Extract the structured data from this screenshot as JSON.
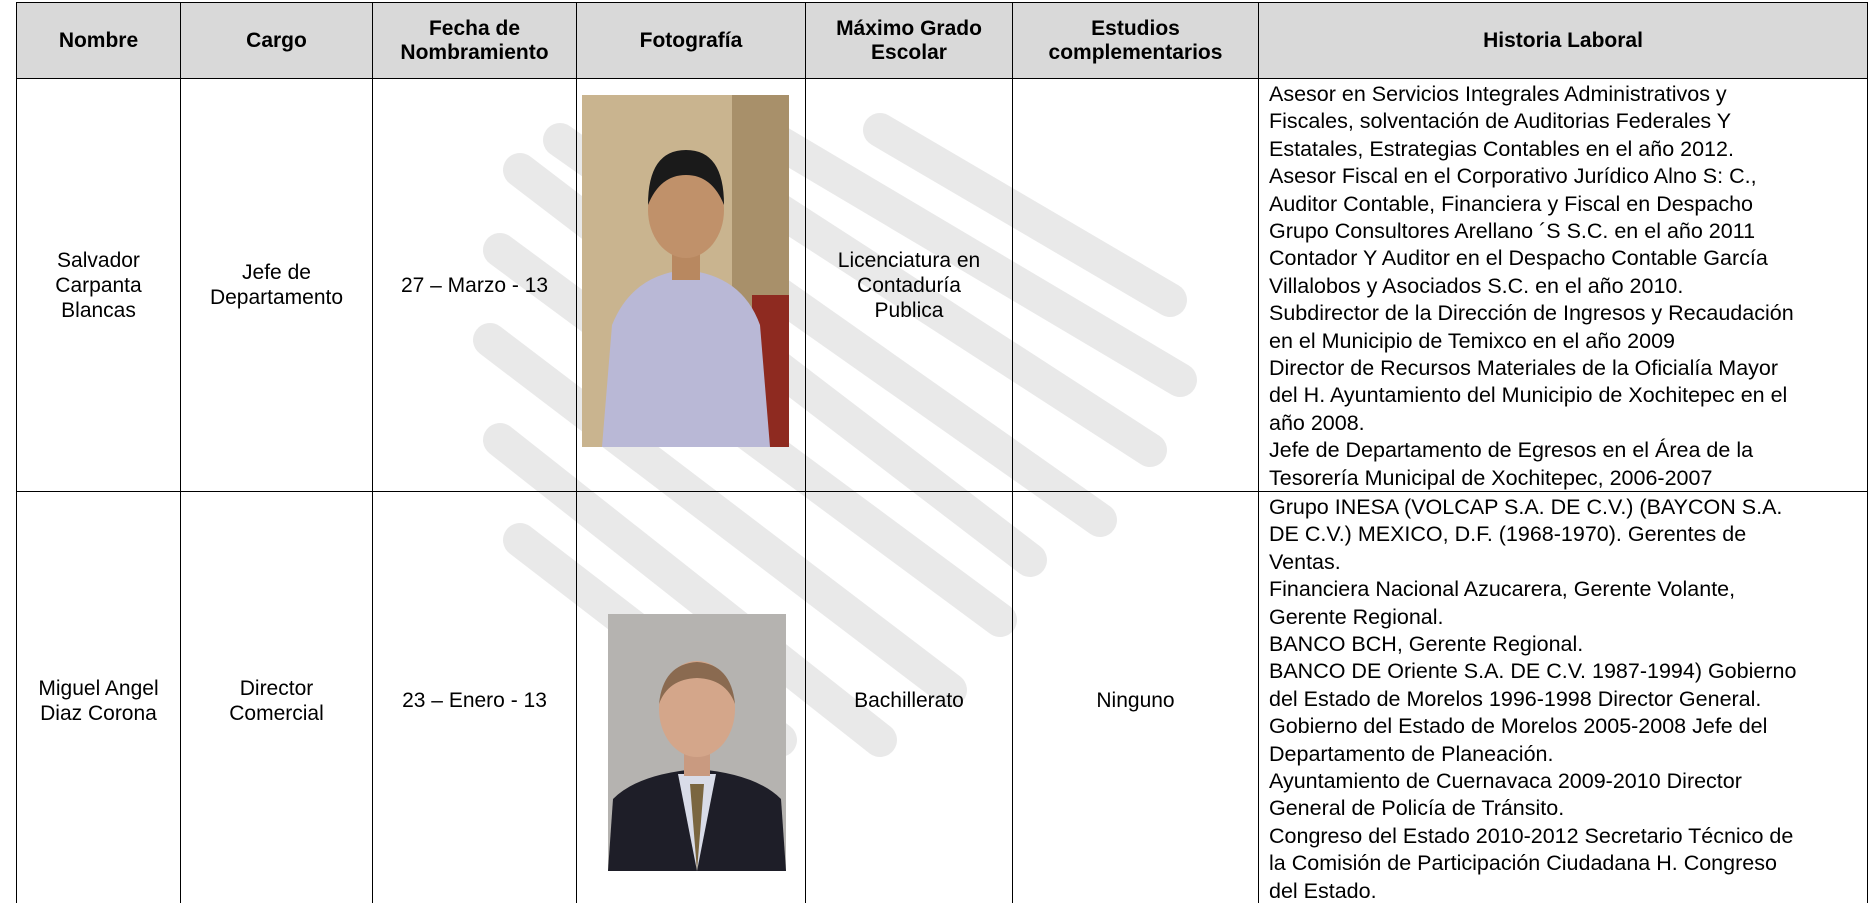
{
  "header": {
    "columns": [
      [
        "Nombre"
      ],
      [
        "Cargo"
      ],
      [
        "Fecha de",
        "Nombramiento"
      ],
      [
        "Fotografía"
      ],
      [
        "Máximo Grado",
        "Escolar"
      ],
      [
        "Estudios",
        "complementarios"
      ],
      [
        "Historia Laboral"
      ]
    ]
  },
  "rows": [
    {
      "nombre": [
        "Salvador",
        "Carpanta",
        "Blancas"
      ],
      "cargo": [
        "Jefe de",
        "Departamento"
      ],
      "fecha": [
        "27 – Marzo - 13"
      ],
      "grado": [
        "Licenciatura en",
        "Contaduría",
        "Publica"
      ],
      "historia": [
        "Asesor en Servicios Integrales Administrativos y",
        "Fiscales, solventación de Auditorias Federales Y",
        "Estatales, Estrategias Contables en el año 2012.",
        "Asesor Fiscal en el Corporativo Jurídico Alno S: C.,",
        "Auditor Contable, Financiera y Fiscal en Despacho",
        "Grupo Consultores Arellano ´S S.C.  en el año 2011",
        "Contador Y Auditor en el Despacho Contable García",
        "Villalobos y Asociados S.C. en el año 2010.",
        "Subdirector de la Dirección de Ingresos y Recaudación",
        "en el Municipio de Temixco en el año 2009",
        "Director de Recursos Materiales de la Oficialía Mayor",
        "del H. Ayuntamiento del Municipio de Xochitepec en el",
        "año 2008.",
        "Jefe de Departamento de Egresos en el Área de la",
        "Tesorería Municipal de Xochitepec, 2006-2007"
      ]
    },
    {
      "nombre": [
        "Miguel Angel",
        "Diaz Corona"
      ],
      "cargo": [
        "Director",
        "Comercial"
      ],
      "fecha": [
        "23 – Enero - 13"
      ],
      "grado": [
        "Bachillerato"
      ],
      "estudios": [
        "Ninguno"
      ],
      "historia": [
        "Grupo INESA (VOLCAP S.A. DE C.V.) (BAYCON S.A.",
        "DE C.V.) MEXICO, D.F. (1968-1970). Gerentes de",
        "Ventas.",
        "Financiera Nacional Azucarera, Gerente Volante,",
        "Gerente Regional.",
        "BANCO BCH, Gerente Regional.",
        "BANCO DE Oriente S.A. DE C.V. 1987-1994) Gobierno",
        "del Estado de Morelos 1996-1998 Director General.",
        "Gobierno del Estado de Morelos 2005-2008 Jefe del",
        "Departamento de  Planeación.",
        "Ayuntamiento de Cuernavaca 2009-2010 Director",
        "General de Policía de Tránsito.",
        "Congreso del Estado 2010-2012 Secretario Técnico de",
        "la Comisión de Participación Ciudadana H. Congreso",
        "del Estado."
      ]
    }
  ]
}
